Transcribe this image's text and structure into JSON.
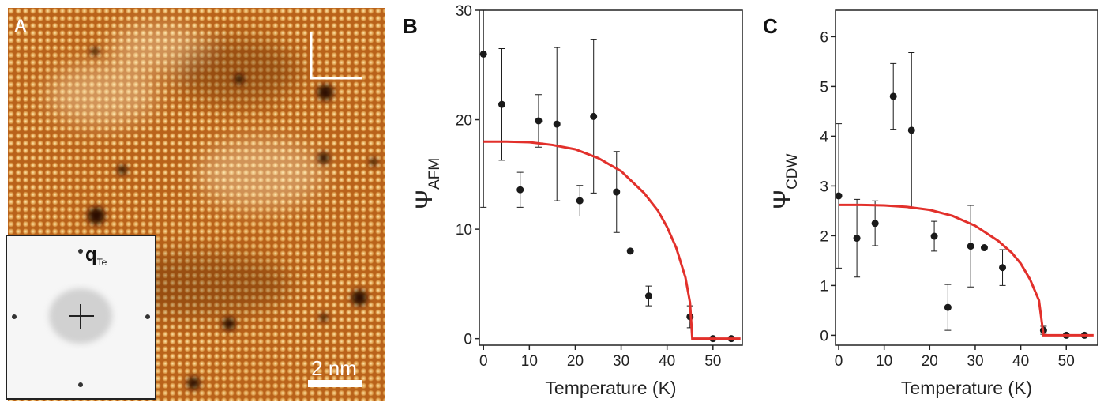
{
  "image_panel": {
    "label": "A",
    "inset_label": "q",
    "inset_subscript": "Te",
    "scale_bar": "2 nm"
  },
  "chart_data": [
    {
      "type": "scatter",
      "panel_label": "B",
      "xlabel": "Temperature (K)",
      "ylabel": "Ψ",
      "ylabel_sub": "AFM",
      "xlim": [
        -0.9,
        56.4
      ],
      "ylim": [
        -0.6,
        30
      ],
      "xticks": [
        0,
        10,
        20,
        30,
        40,
        50
      ],
      "yticks": [
        0,
        10,
        20,
        30
      ],
      "series": [
        {
          "color": "#1a1a1a",
          "style": "points",
          "x": [
            0,
            4,
            8,
            12,
            16,
            21,
            24,
            29,
            32,
            36,
            45,
            50,
            54
          ],
          "values": [
            26.0,
            21.4,
            13.6,
            19.9,
            19.6,
            12.6,
            20.3,
            13.4,
            8.0,
            3.9,
            2.0,
            0,
            0
          ],
          "errors": [
            14,
            5.1,
            1.6,
            2.4,
            7,
            1.4,
            7,
            3.7,
            null,
            0.9,
            1.0,
            null,
            null
          ]
        },
        {
          "color": "#e2302b",
          "style": "line",
          "x": [
            0,
            5,
            10,
            15,
            20,
            25,
            30,
            35,
            38,
            40,
            42,
            44,
            45,
            45.5,
            56
          ],
          "values": [
            18.0,
            18.0,
            17.95,
            17.7,
            17.3,
            16.5,
            15.3,
            13.3,
            11.7,
            10.2,
            8.3,
            5.6,
            3.3,
            0,
            0
          ]
        }
      ]
    },
    {
      "type": "scatter",
      "panel_label": "C",
      "xlabel": "Temperature (K)",
      "ylabel": "Ψ",
      "ylabel_sub": "CDW",
      "xlim": [
        -0.7,
        56.9
      ],
      "ylim": [
        -0.2,
        6.53
      ],
      "xticks": [
        0,
        10,
        20,
        30,
        40,
        50
      ],
      "yticks": [
        0,
        1,
        2,
        3,
        4,
        5,
        6
      ],
      "series": [
        {
          "color": "#1a1a1a",
          "style": "points",
          "x": [
            0,
            4,
            8,
            12,
            16,
            21,
            24,
            29,
            32,
            36,
            45,
            50,
            54
          ],
          "values": [
            2.8,
            1.95,
            2.25,
            4.8,
            4.12,
            1.99,
            0.56,
            1.79,
            1.76,
            1.36,
            0.1,
            0,
            0
          ],
          "errors": [
            1.45,
            0.78,
            0.45,
            0.66,
            1.56,
            0.3,
            0.46,
            0.82,
            null,
            0.36,
            0.08,
            null,
            null
          ]
        },
        {
          "color": "#e2302b",
          "style": "line",
          "x": [
            0,
            5,
            10,
            15,
            20,
            25,
            30,
            35,
            38,
            40,
            42,
            44,
            45,
            56
          ],
          "values": [
            2.62,
            2.62,
            2.61,
            2.58,
            2.52,
            2.4,
            2.2,
            1.9,
            1.66,
            1.44,
            1.13,
            0.7,
            0,
            0
          ]
        }
      ]
    }
  ]
}
